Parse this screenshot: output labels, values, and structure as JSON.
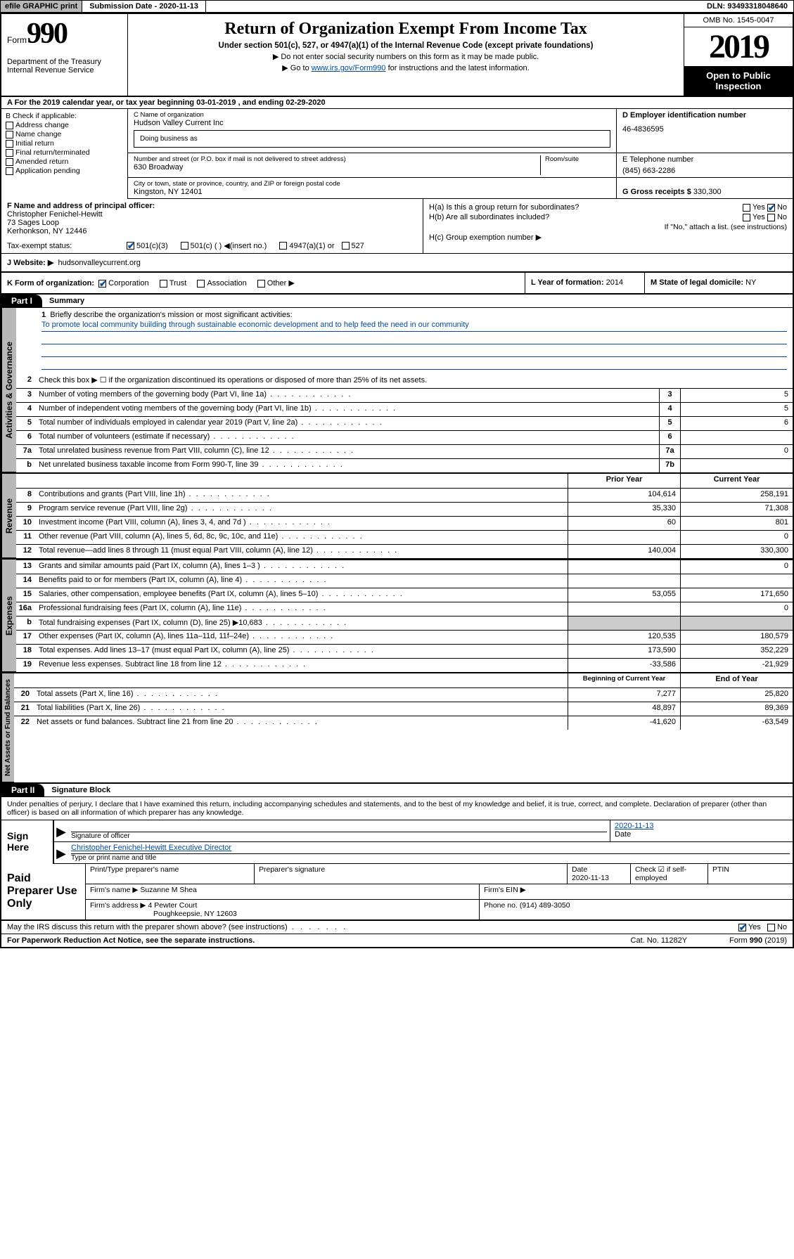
{
  "topbar": {
    "efile": "efile GRAPHIC print",
    "submission": "Submission Date - 2020-11-13",
    "dln": "DLN: 93493318048640"
  },
  "header": {
    "form_label": "Form",
    "form_num": "990",
    "dept": "Department of the Treasury\nInternal Revenue Service",
    "title": "Return of Organization Exempt From Income Tax",
    "sub": "Under section 501(c), 527, or 4947(a)(1) of the Internal Revenue Code (except private foundations)",
    "note1": "Do not enter social security numbers on this form as it may be made public.",
    "note2_pre": "Go to ",
    "note2_link": "www.irs.gov/Form990",
    "note2_post": " for instructions and the latest information.",
    "omb": "OMB No. 1545-0047",
    "year": "2019",
    "open": "Open to Public Inspection"
  },
  "rowA": "A For the 2019 calendar year, or tax year beginning 03-01-2019    , and ending 02-29-2020",
  "colB": {
    "hdr": "B Check if applicable:",
    "items": [
      "Address change",
      "Name change",
      "Initial return",
      "Final return/terminated",
      "Amended return",
      "Application pending"
    ]
  },
  "colC": {
    "name_lbl": "C Name of organization",
    "name": "Hudson Valley Current Inc",
    "dba_lbl": "Doing business as",
    "addr_lbl": "Number and street (or P.O. box if mail is not delivered to street address)",
    "addr": "630 Broadway",
    "room_lbl": "Room/suite",
    "city_lbl": "City or town, state or province, country, and ZIP or foreign postal code",
    "city": "Kingston, NY  12401"
  },
  "colD": {
    "ein_lbl": "D Employer identification number",
    "ein": "46-4836595",
    "tel_lbl": "E Telephone number",
    "tel": "(845) 663-2286",
    "gross_lbl": "G Gross receipts $",
    "gross": "330,300"
  },
  "f": {
    "lbl": "F  Name and address of principal officer:",
    "name": "Christopher Fenichel-Hewitt",
    "addr1": "73 Sages Loop",
    "addr2": "Kerhonkson, NY  12446"
  },
  "h": {
    "a": "H(a)  Is this a group return for subordinates?",
    "b": "H(b)  Are all subordinates included?",
    "note": "If \"No,\" attach a list. (see instructions)",
    "c": "H(c)  Group exemption number ▶"
  },
  "taxexempt": {
    "lbl": "Tax-exempt status:",
    "opts": [
      "501(c)(3)",
      "501(c) (  ) ◀(insert no.)",
      "4947(a)(1) or",
      "527"
    ]
  },
  "website": {
    "lbl": "J  Website: ▶",
    "val": "hudsonvalleycurrent.org"
  },
  "k": {
    "lbl": "K Form of organization:",
    "opts": [
      "Corporation",
      "Trust",
      "Association",
      "Other ▶"
    ]
  },
  "l": {
    "lbl": "L Year of formation:",
    "val": "2014"
  },
  "m": {
    "lbl": "M State of legal domicile:",
    "val": "NY"
  },
  "part1": {
    "hdr": "Part I",
    "title": "Summary"
  },
  "summary": {
    "l1": "Briefly describe the organization's mission or most significant activities:",
    "l1v": "To promote local community building through sustainable economic development and to help feed the need in our community",
    "l2": "Check this box ▶ ☐  if the organization discontinued its operations or disposed of more than 25% of its net assets.",
    "rows_a": [
      {
        "n": "3",
        "t": "Number of voting members of the governing body (Part VI, line 1a)",
        "b": "3",
        "v": "5"
      },
      {
        "n": "4",
        "t": "Number of independent voting members of the governing body (Part VI, line 1b)",
        "b": "4",
        "v": "5"
      },
      {
        "n": "5",
        "t": "Total number of individuals employed in calendar year 2019 (Part V, line 2a)",
        "b": "5",
        "v": "6"
      },
      {
        "n": "6",
        "t": "Total number of volunteers (estimate if necessary)",
        "b": "6",
        "v": ""
      },
      {
        "n": "7a",
        "t": "Total unrelated business revenue from Part VIII, column (C), line 12",
        "b": "7a",
        "v": "0"
      },
      {
        "n": "b",
        "t": "Net unrelated business taxable income from Form 990-T, line 39",
        "b": "7b",
        "v": ""
      }
    ],
    "col_prior": "Prior Year",
    "col_current": "Current Year",
    "rows_rev": [
      {
        "n": "8",
        "t": "Contributions and grants (Part VIII, line 1h)",
        "p": "104,614",
        "c": "258,191"
      },
      {
        "n": "9",
        "t": "Program service revenue (Part VIII, line 2g)",
        "p": "35,330",
        "c": "71,308"
      },
      {
        "n": "10",
        "t": "Investment income (Part VIII, column (A), lines 3, 4, and 7d )",
        "p": "60",
        "c": "801"
      },
      {
        "n": "11",
        "t": "Other revenue (Part VIII, column (A), lines 5, 6d, 8c, 9c, 10c, and 11e)",
        "p": "",
        "c": "0"
      },
      {
        "n": "12",
        "t": "Total revenue—add lines 8 through 11 (must equal Part VIII, column (A), line 12)",
        "p": "140,004",
        "c": "330,300"
      }
    ],
    "rows_exp": [
      {
        "n": "13",
        "t": "Grants and similar amounts paid (Part IX, column (A), lines 1–3 )",
        "p": "",
        "c": "0"
      },
      {
        "n": "14",
        "t": "Benefits paid to or for members (Part IX, column (A), line 4)",
        "p": "",
        "c": ""
      },
      {
        "n": "15",
        "t": "Salaries, other compensation, employee benefits (Part IX, column (A), lines 5–10)",
        "p": "53,055",
        "c": "171,650"
      },
      {
        "n": "16a",
        "t": "Professional fundraising fees (Part IX, column (A), line 11e)",
        "p": "",
        "c": "0"
      },
      {
        "n": "b",
        "t": "Total fundraising expenses (Part IX, column (D), line 25) ▶10,683",
        "p": "SHADE",
        "c": "SHADE"
      },
      {
        "n": "17",
        "t": "Other expenses (Part IX, column (A), lines 11a–11d, 11f–24e)",
        "p": "120,535",
        "c": "180,579"
      },
      {
        "n": "18",
        "t": "Total expenses. Add lines 13–17 (must equal Part IX, column (A), line 25)",
        "p": "173,590",
        "c": "352,229"
      },
      {
        "n": "19",
        "t": "Revenue less expenses. Subtract line 18 from line 12",
        "p": "-33,586",
        "c": "-21,929"
      }
    ],
    "col_beg": "Beginning of Current Year",
    "col_end": "End of Year",
    "rows_net": [
      {
        "n": "20",
        "t": "Total assets (Part X, line 16)",
        "p": "7,277",
        "c": "25,820"
      },
      {
        "n": "21",
        "t": "Total liabilities (Part X, line 26)",
        "p": "48,897",
        "c": "89,369"
      },
      {
        "n": "22",
        "t": "Net assets or fund balances. Subtract line 21 from line 20",
        "p": "-41,620",
        "c": "-63,549"
      }
    ]
  },
  "tabs": {
    "gov": "Activities & Governance",
    "rev": "Revenue",
    "exp": "Expenses",
    "net": "Net Assets or Fund Balances"
  },
  "part2": {
    "hdr": "Part II",
    "title": "Signature Block"
  },
  "sig": {
    "perjury": "Under penalties of perjury, I declare that I have examined this return, including accompanying schedules and statements, and to the best of my knowledge and belief, it is true, correct, and complete. Declaration of preparer (other than officer) is based on all information of which preparer has any knowledge.",
    "sign_here": "Sign Here",
    "sig_officer": "Signature of officer",
    "date_lbl": "Date",
    "date": "2020-11-13",
    "name": "Christopher Fenichel-Hewitt  Executive Director",
    "name_lbl": "Type or print name and title"
  },
  "paid": {
    "lbl": "Paid Preparer Use Only",
    "h1": "Print/Type preparer's name",
    "h2": "Preparer's signature",
    "h3": "Date",
    "h3v": "2020-11-13",
    "h4": "Check ☑ if self-employed",
    "h5": "PTIN",
    "firm_name_lbl": "Firm's name    ▶",
    "firm_name": "Suzanne M Shea",
    "firm_ein_lbl": "Firm's EIN ▶",
    "firm_addr_lbl": "Firm's address ▶",
    "firm_addr": "4 Pewter Court",
    "firm_addr2": "Poughkeepsie, NY  12603",
    "phone_lbl": "Phone no.",
    "phone": "(914) 489-3050"
  },
  "bottom": {
    "q": "May the IRS discuss this return with the preparer shown above? (see instructions)",
    "yes": "Yes",
    "no": "No"
  },
  "footer": {
    "paperwork": "For Paperwork Reduction Act Notice, see the separate instructions.",
    "cat": "Cat. No. 11282Y",
    "form": "Form 990 (2019)"
  }
}
